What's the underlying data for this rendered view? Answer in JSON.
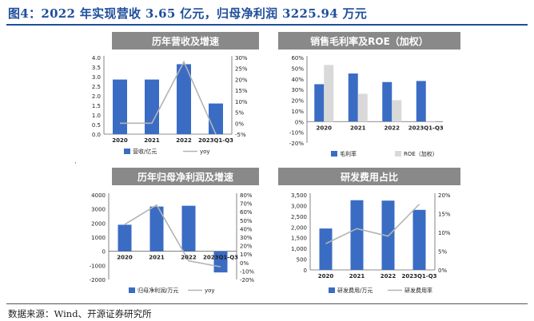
{
  "figure_title": "图4：2022 年实现营收 3.65 亿元，归母净利润 3225.94 万元",
  "source": "数据来源：Wind、开源证券研究所",
  "marker": "·",
  "colors": {
    "bar_blue": "#3a6cc4",
    "bar_grey": "#d9d9d9",
    "line_grey": "#b3b3b3",
    "header_bg": "#898989",
    "title_blue": "#1f4e9c"
  },
  "chart_data": [
    {
      "id": "revenue",
      "type": "bar",
      "title": "历年营收及增速",
      "categories": [
        "2020",
        "2021",
        "2022",
        "2023Q1-Q3"
      ],
      "series": [
        {
          "name": "营收/亿元",
          "kind": "bar",
          "axis": "left",
          "values": [
            2.85,
            2.85,
            3.65,
            1.6
          ]
        },
        {
          "name": "yoy",
          "kind": "line",
          "axis": "right",
          "values": [
            0,
            0,
            28,
            -5
          ]
        }
      ],
      "left_axis": {
        "min": 0,
        "max": 4,
        "step": 0.5,
        "ticks": [
          "0.0",
          "0.5",
          "1.0",
          "1.5",
          "2.0",
          "2.5",
          "3.0",
          "3.5",
          "4.0"
        ]
      },
      "right_axis": {
        "min": -5,
        "max": 30,
        "step": 5,
        "ticks": [
          "-5%",
          "0%",
          "5%",
          "10%",
          "15%",
          "20%",
          "25%",
          "30%"
        ]
      },
      "legend": [
        "营收/亿元",
        "yoy"
      ]
    },
    {
      "id": "margin",
      "type": "bar",
      "title": "销售毛利率及ROE（加权）",
      "categories": [
        "2020",
        "2021",
        "2022",
        "2023Q1-Q3"
      ],
      "series": [
        {
          "name": "毛利率",
          "kind": "bar",
          "axis": "left",
          "values": [
            35,
            45,
            37,
            38
          ]
        },
        {
          "name": "ROE（加权）",
          "kind": "bar",
          "axis": "left",
          "values": [
            53,
            26,
            20,
            -0.5
          ]
        }
      ],
      "left_axis": {
        "min": -20,
        "max": 60,
        "step": 10,
        "ticks": [
          "-20%",
          "-10%",
          "0%",
          "10%",
          "20%",
          "30%",
          "40%",
          "50%",
          "60%"
        ]
      },
      "legend": [
        "毛利率",
        "ROE（加权）"
      ]
    },
    {
      "id": "netprofit",
      "type": "bar",
      "title": "历年归母净利润及增速",
      "categories": [
        "2020",
        "2021",
        "2022",
        "2023Q1-Q3"
      ],
      "series": [
        {
          "name": "归母净利润/万元",
          "kind": "bar",
          "axis": "left",
          "values": [
            1880,
            3170,
            3226,
            -1500
          ]
        },
        {
          "name": "yoy",
          "kind": "line",
          "axis": "right",
          "values": [
            45,
            68,
            2,
            -5
          ]
        }
      ],
      "left_axis": {
        "min": -2000,
        "max": 4000,
        "step": 1000,
        "ticks": [
          "-2000",
          "-1000",
          "0",
          "1000",
          "2000",
          "3000",
          "4000"
        ]
      },
      "right_axis": {
        "min": -20,
        "max": 80,
        "step": 10,
        "ticks": [
          "-20%",
          "-10%",
          "0%",
          "10%",
          "20%",
          "30%",
          "40%",
          "50%",
          "60%",
          "70%",
          "80%"
        ]
      },
      "legend": [
        "归母净利润/万元",
        "yoy"
      ]
    },
    {
      "id": "rnd",
      "type": "bar",
      "title": "研发费用占比",
      "categories": [
        "2020",
        "2021",
        "2022",
        "2023Q1-Q3"
      ],
      "series": [
        {
          "name": "研发费用/万元",
          "kind": "bar",
          "axis": "left",
          "values": [
            1930,
            3250,
            3230,
            2800
          ]
        },
        {
          "name": "研发费用率",
          "kind": "line",
          "axis": "right",
          "values": [
            7,
            11,
            9,
            17.5
          ]
        }
      ],
      "left_axis": {
        "min": 0,
        "max": 3500,
        "step": 500,
        "ticks": [
          "0",
          "500",
          "1,000",
          "1,500",
          "2,000",
          "2,500",
          "3,000",
          "3,500"
        ]
      },
      "right_axis": {
        "min": 0,
        "max": 20,
        "step": 5,
        "ticks": [
          "0%",
          "5%",
          "10%",
          "15%",
          "20%"
        ]
      },
      "legend": [
        "研发费用/万元",
        "研发费用率"
      ]
    }
  ]
}
